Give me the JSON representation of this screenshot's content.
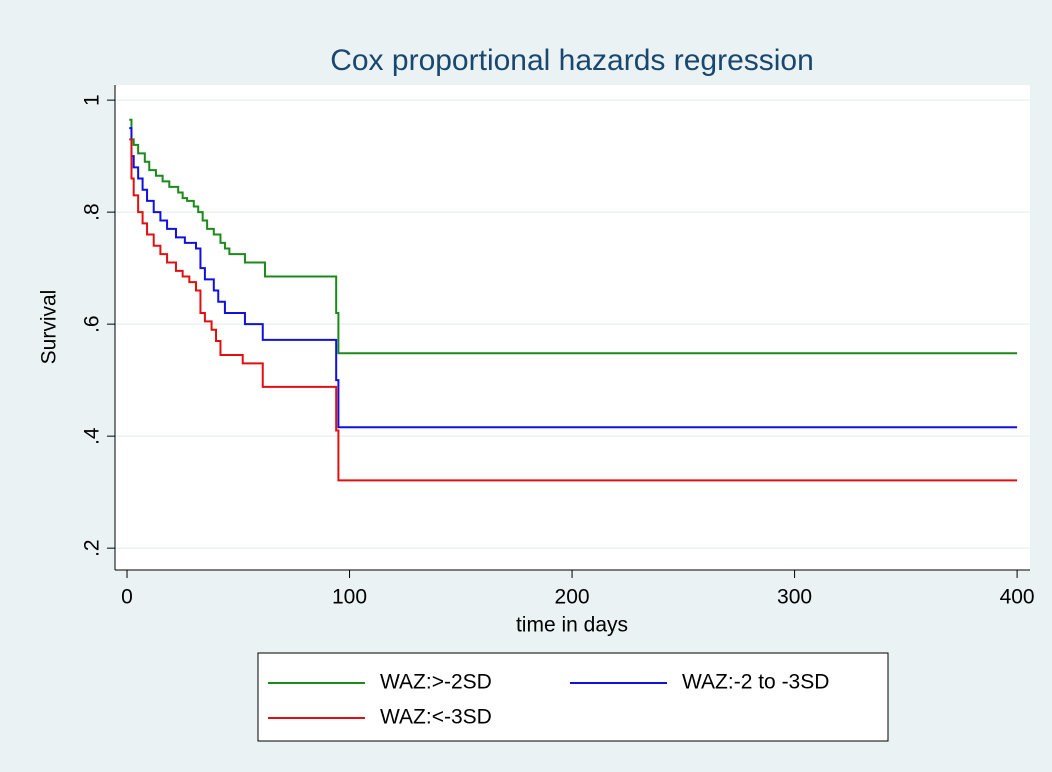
{
  "chart_data": {
    "type": "line",
    "step": "post",
    "title": "Cox proportional hazards regression",
    "x_label": "time in days",
    "y_label": "Survival",
    "xlim": [
      -5.4,
      405.8
    ],
    "ylim": [
      0.161,
      1.027
    ],
    "xticks": [
      0,
      100,
      200,
      300,
      400
    ],
    "yticks": [
      {
        "value": 0.2,
        "label": ".2"
      },
      {
        "value": 0.4,
        "label": ".4"
      },
      {
        "value": 0.6,
        "label": ".6"
      },
      {
        "value": 0.8,
        "label": ".8"
      },
      1
    ],
    "grid": true,
    "legend": "bottom",
    "series": [
      {
        "name": "WAZ:>-2SD",
        "color": "#1a8a1a",
        "x": [
          1,
          2,
          3,
          5,
          8,
          10,
          13,
          16,
          19,
          23,
          25,
          27,
          30,
          32,
          34,
          36,
          39,
          42,
          44,
          46,
          53,
          62,
          94,
          95,
          400
        ],
        "values": [
          0.965,
          0.93,
          0.92,
          0.905,
          0.89,
          0.875,
          0.865,
          0.855,
          0.845,
          0.835,
          0.825,
          0.82,
          0.81,
          0.8,
          0.785,
          0.77,
          0.76,
          0.745,
          0.735,
          0.725,
          0.71,
          0.685,
          0.62,
          0.548,
          0.548
        ]
      },
      {
        "name": "WAZ:-2 to -3SD",
        "color": "#1010e0",
        "x": [
          1,
          2,
          3,
          5,
          7,
          9,
          12,
          15,
          18,
          22,
          26,
          31,
          33,
          35,
          39,
          41,
          44,
          53,
          61,
          94,
          95,
          400
        ],
        "values": [
          0.95,
          0.9,
          0.88,
          0.86,
          0.84,
          0.82,
          0.8,
          0.785,
          0.77,
          0.755,
          0.745,
          0.735,
          0.7,
          0.68,
          0.66,
          0.64,
          0.62,
          0.6,
          0.572,
          0.5,
          0.416,
          0.416
        ]
      },
      {
        "name": "WAZ:<-3SD",
        "color": "#e01010",
        "x": [
          1,
          2,
          3,
          5,
          7,
          9,
          12,
          15,
          18,
          22,
          25,
          28,
          31,
          33,
          35,
          38,
          40,
          42,
          52,
          61,
          94,
          95,
          400
        ],
        "values": [
          0.93,
          0.86,
          0.83,
          0.8,
          0.78,
          0.76,
          0.74,
          0.725,
          0.71,
          0.695,
          0.685,
          0.675,
          0.66,
          0.62,
          0.605,
          0.59,
          0.57,
          0.545,
          0.53,
          0.488,
          0.41,
          0.321,
          0.321
        ]
      }
    ]
  }
}
